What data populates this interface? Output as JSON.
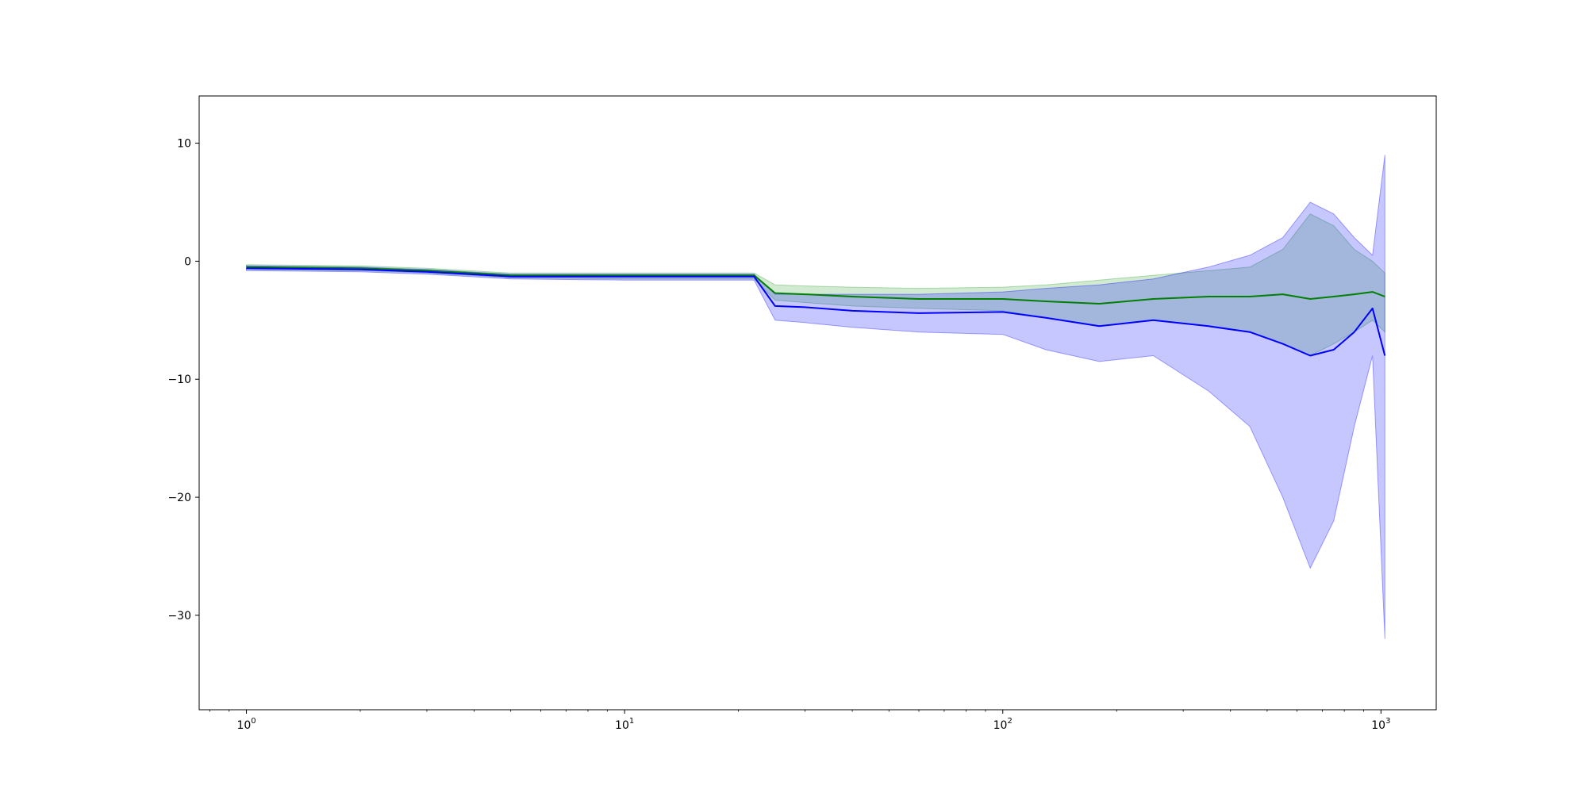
{
  "chart_data": {
    "type": "line",
    "title": "",
    "xlabel": "",
    "ylabel": "",
    "xscale": "log",
    "xlim": [
      0.75,
      1400
    ],
    "ylim": [
      -38,
      14
    ],
    "grid": false,
    "legend": "none",
    "x_ticks": [
      {
        "value": 1,
        "base": "10",
        "exp": "0"
      },
      {
        "value": 10,
        "base": "10",
        "exp": "1"
      },
      {
        "value": 100,
        "base": "10",
        "exp": "2"
      },
      {
        "value": 1000,
        "base": "10",
        "exp": "3"
      }
    ],
    "y_ticks": [
      {
        "value": 10,
        "label": "10"
      },
      {
        "value": 0,
        "label": "0"
      },
      {
        "value": -10,
        "label": "−10"
      },
      {
        "value": -20,
        "label": "−20"
      },
      {
        "value": -30,
        "label": "−30"
      }
    ],
    "series": [
      {
        "color": "#008000",
        "band_color": "#2ca02c",
        "x": [
          1,
          2,
          3,
          5,
          10,
          15,
          22,
          25,
          30,
          40,
          60,
          100,
          130,
          180,
          250,
          350,
          450,
          550,
          650,
          750,
          850,
          950,
          1024
        ],
        "y": [
          -0.5,
          -0.6,
          -0.8,
          -1.2,
          -1.2,
          -1.2,
          -1.2,
          -2.7,
          -2.8,
          -3.0,
          -3.2,
          -3.2,
          -3.4,
          -3.6,
          -3.2,
          -3.0,
          -3.0,
          -2.8,
          -3.2,
          -3.0,
          -2.8,
          -2.6,
          -3.0
        ],
        "lower": [
          -0.7,
          -0.8,
          -1.0,
          -1.4,
          -1.5,
          -1.5,
          -1.5,
          -3.3,
          -3.5,
          -3.8,
          -4.0,
          -4.2,
          -4.8,
          -5.5,
          -5.0,
          -5.5,
          -6.0,
          -7.0,
          -8.0,
          -7.0,
          -6.0,
          -5.0,
          -6.0
        ],
        "upper": [
          -0.3,
          -0.4,
          -0.6,
          -1.0,
          -1.0,
          -1.0,
          -1.0,
          -2.0,
          -2.1,
          -2.2,
          -2.3,
          -2.2,
          -2.0,
          -1.6,
          -1.2,
          -0.8,
          -0.5,
          1.0,
          4.0,
          3.0,
          1.0,
          0.0,
          -1.0
        ]
      },
      {
        "color": "#0000ff",
        "band_color": "#0000ff",
        "x": [
          1,
          2,
          3,
          5,
          10,
          15,
          22,
          25,
          30,
          40,
          60,
          100,
          130,
          180,
          250,
          350,
          450,
          550,
          650,
          750,
          850,
          950,
          1024
        ],
        "y": [
          -0.6,
          -0.7,
          -0.9,
          -1.3,
          -1.3,
          -1.3,
          -1.3,
          -3.8,
          -3.9,
          -4.2,
          -4.4,
          -4.3,
          -4.8,
          -5.5,
          -5.0,
          -5.5,
          -6.0,
          -7.0,
          -8.0,
          -7.5,
          -6.0,
          -4.0,
          -8.0
        ],
        "lower": [
          -0.8,
          -0.9,
          -1.1,
          -1.5,
          -1.6,
          -1.6,
          -1.6,
          -5.0,
          -5.2,
          -5.6,
          -6.0,
          -6.2,
          -7.5,
          -8.5,
          -8.0,
          -11.0,
          -14.0,
          -20.0,
          -26.0,
          -22.0,
          -14.0,
          -8.0,
          -32.0
        ],
        "upper": [
          -0.4,
          -0.5,
          -0.7,
          -1.1,
          -1.1,
          -1.1,
          -1.1,
          -2.8,
          -2.8,
          -2.8,
          -2.8,
          -2.6,
          -2.3,
          -2.0,
          -1.5,
          -0.5,
          0.5,
          2.0,
          5.0,
          4.0,
          2.0,
          0.5,
          9.0
        ]
      }
    ]
  }
}
